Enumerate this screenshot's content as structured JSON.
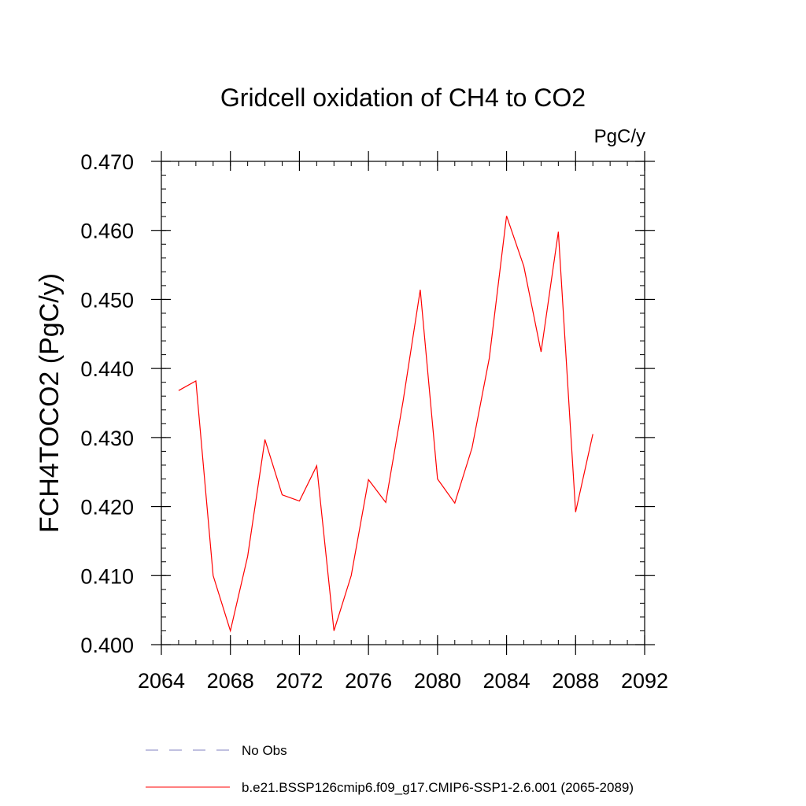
{
  "chart_data": {
    "type": "line",
    "title": "Gridcell oxidation of CH4 to CO2",
    "units": "PgC/y",
    "ylabel": "FCH4TOCO2  (PgC/y)",
    "xlabel": "",
    "xlim": [
      2064,
      2092
    ],
    "ylim": [
      0.4,
      0.47
    ],
    "xticks": [
      2064,
      2068,
      2072,
      2076,
      2080,
      2084,
      2088,
      2092
    ],
    "yticks": [
      0.4,
      0.41,
      0.42,
      0.43,
      0.44,
      0.45,
      0.46,
      0.47
    ],
    "ytick_labels": [
      "0.400",
      "0.410",
      "0.420",
      "0.430",
      "0.440",
      "0.450",
      "0.460",
      "0.470"
    ],
    "xtick_labels": [
      "2064",
      "2068",
      "2072",
      "2076",
      "2080",
      "2084",
      "2088",
      "2092"
    ],
    "x_minor_step": 1,
    "y_minor_step": 0.002,
    "grid": false,
    "legend_placement": "bottom",
    "series": [
      {
        "name": "b.e21.BSSP126cmip6.f09_g17.CMIP6-SSP1-2.6.001 (2065-2089)",
        "color": "#ff0000",
        "style": "solid",
        "x": [
          2065,
          2066,
          2067,
          2068,
          2069,
          2070,
          2071,
          2072,
          2073,
          2074,
          2075,
          2076,
          2077,
          2078,
          2079,
          2080,
          2081,
          2082,
          2083,
          2084,
          2085,
          2086,
          2087,
          2088,
          2089
        ],
        "values": [
          0.4368,
          0.4382,
          0.41,
          0.402,
          0.4128,
          0.4297,
          0.4217,
          0.4208,
          0.4259,
          0.402,
          0.41,
          0.4239,
          0.4206,
          0.4352,
          0.4514,
          0.424,
          0.4205,
          0.4285,
          0.4415,
          0.4621,
          0.4548,
          0.4424,
          0.4598,
          0.4192,
          0.4305
        ]
      }
    ],
    "legend": [
      {
        "label": "No Obs",
        "color": "#8080c0",
        "style": "dashed"
      },
      {
        "label": "b.e21.BSSP126cmip6.f09_g17.CMIP6-SSP1-2.6.001 (2065-2089)",
        "color": "#ff0000",
        "style": "solid"
      }
    ]
  }
}
